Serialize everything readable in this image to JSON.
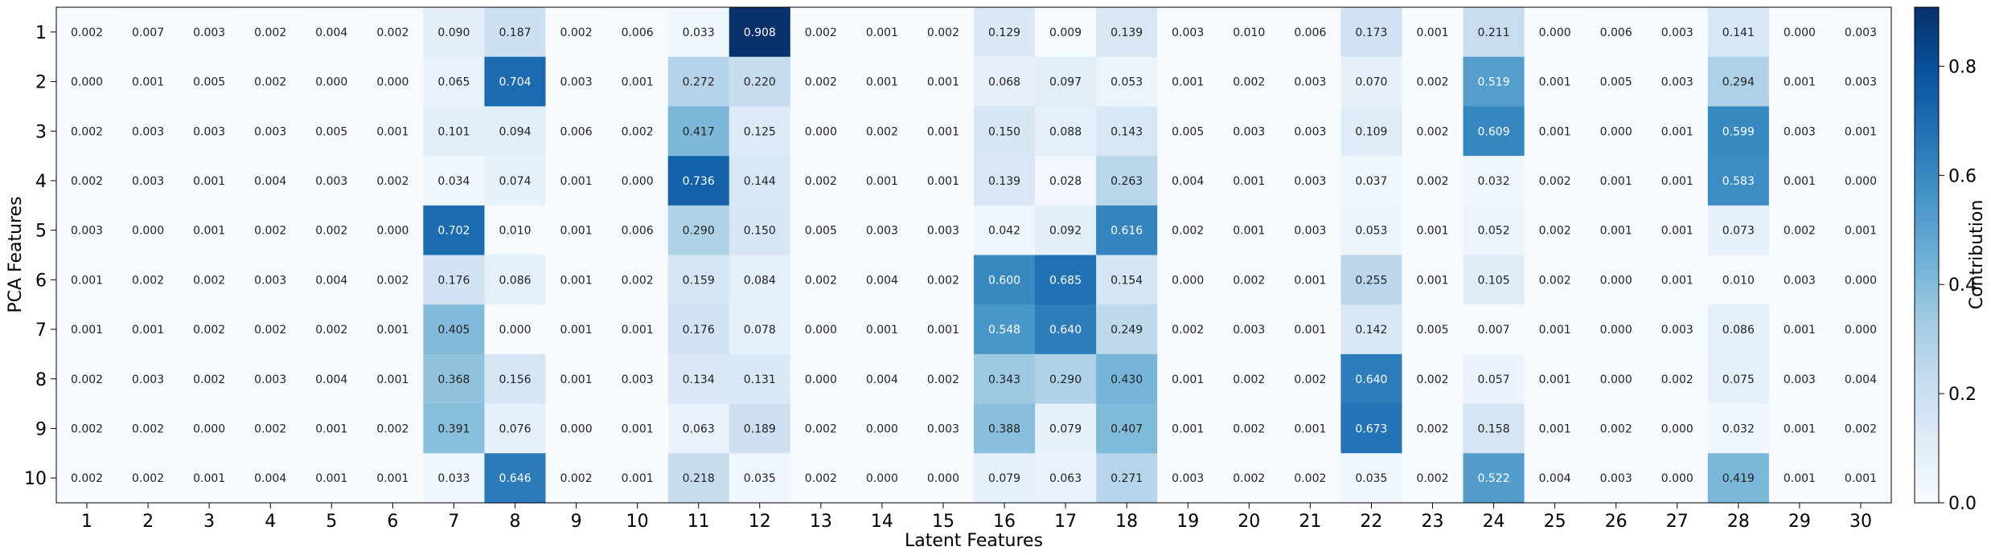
{
  "chart_data": {
    "type": "heatmap",
    "xlabel": "Latent Features",
    "ylabel": "PCA Features",
    "x_categories": [
      "1",
      "2",
      "3",
      "4",
      "5",
      "6",
      "7",
      "8",
      "9",
      "10",
      "11",
      "12",
      "13",
      "14",
      "15",
      "16",
      "17",
      "18",
      "19",
      "20",
      "21",
      "22",
      "23",
      "24",
      "25",
      "26",
      "27",
      "28",
      "29",
      "30"
    ],
    "y_categories": [
      "1",
      "2",
      "3",
      "4",
      "5",
      "6",
      "7",
      "8",
      "9",
      "10"
    ],
    "values": [
      [
        0.002,
        0.007,
        0.003,
        0.002,
        0.004,
        0.002,
        0.09,
        0.187,
        0.002,
        0.006,
        0.033,
        0.908,
        0.002,
        0.001,
        0.002,
        0.129,
        0.009,
        0.139,
        0.003,
        0.01,
        0.006,
        0.173,
        0.001,
        0.211,
        0.0,
        0.006,
        0.003,
        0.141,
        0.0,
        0.003
      ],
      [
        0.0,
        0.001,
        0.005,
        0.002,
        0.0,
        0.0,
        0.065,
        0.704,
        0.003,
        0.001,
        0.272,
        0.22,
        0.002,
        0.001,
        0.001,
        0.068,
        0.097,
        0.053,
        0.001,
        0.002,
        0.003,
        0.07,
        0.002,
        0.519,
        0.001,
        0.005,
        0.003,
        0.294,
        0.001,
        0.003
      ],
      [
        0.002,
        0.003,
        0.003,
        0.003,
        0.005,
        0.001,
        0.101,
        0.094,
        0.006,
        0.002,
        0.417,
        0.125,
        0.0,
        0.002,
        0.001,
        0.15,
        0.088,
        0.143,
        0.005,
        0.003,
        0.003,
        0.109,
        0.002,
        0.609,
        0.001,
        0.0,
        0.001,
        0.599,
        0.003,
        0.001
      ],
      [
        0.002,
        0.003,
        0.001,
        0.004,
        0.003,
        0.002,
        0.034,
        0.074,
        0.001,
        0.0,
        0.736,
        0.144,
        0.002,
        0.001,
        0.001,
        0.139,
        0.028,
        0.263,
        0.004,
        0.001,
        0.003,
        0.037,
        0.002,
        0.032,
        0.002,
        0.001,
        0.001,
        0.583,
        0.001,
        0.0
      ],
      [
        0.003,
        0.0,
        0.001,
        0.002,
        0.002,
        0.0,
        0.702,
        0.01,
        0.001,
        0.006,
        0.29,
        0.15,
        0.005,
        0.003,
        0.003,
        0.042,
        0.092,
        0.616,
        0.002,
        0.001,
        0.003,
        0.053,
        0.001,
        0.052,
        0.002,
        0.001,
        0.001,
        0.073,
        0.002,
        0.001
      ],
      [
        0.001,
        0.002,
        0.002,
        0.003,
        0.004,
        0.002,
        0.176,
        0.086,
        0.001,
        0.002,
        0.159,
        0.084,
        0.002,
        0.004,
        0.002,
        0.6,
        0.685,
        0.154,
        0.0,
        0.002,
        0.001,
        0.255,
        0.001,
        0.105,
        0.002,
        0.0,
        0.001,
        0.01,
        0.003,
        0.0
      ],
      [
        0.001,
        0.001,
        0.002,
        0.002,
        0.002,
        0.001,
        0.405,
        0.0,
        0.001,
        0.001,
        0.176,
        0.078,
        0.0,
        0.001,
        0.001,
        0.548,
        0.64,
        0.249,
        0.002,
        0.003,
        0.001,
        0.142,
        0.005,
        0.007,
        0.001,
        0.0,
        0.003,
        0.086,
        0.001,
        0.0
      ],
      [
        0.002,
        0.003,
        0.002,
        0.003,
        0.004,
        0.001,
        0.368,
        0.156,
        0.001,
        0.003,
        0.134,
        0.131,
        0.0,
        0.004,
        0.002,
        0.343,
        0.29,
        0.43,
        0.001,
        0.002,
        0.002,
        0.64,
        0.002,
        0.057,
        0.001,
        0.0,
        0.002,
        0.075,
        0.003,
        0.004
      ],
      [
        0.002,
        0.002,
        0.0,
        0.002,
        0.001,
        0.002,
        0.391,
        0.076,
        0.0,
        0.001,
        0.063,
        0.189,
        0.002,
        0.0,
        0.003,
        0.388,
        0.079,
        0.407,
        0.001,
        0.002,
        0.001,
        0.673,
        0.002,
        0.158,
        0.001,
        0.002,
        0.0,
        0.032,
        0.001,
        0.002
      ],
      [
        0.002,
        0.002,
        0.001,
        0.004,
        0.001,
        0.001,
        0.033,
        0.646,
        0.002,
        0.001,
        0.218,
        0.035,
        0.002,
        0.0,
        0.0,
        0.079,
        0.063,
        0.271,
        0.003,
        0.002,
        0.002,
        0.035,
        0.002,
        0.522,
        0.004,
        0.003,
        0.0,
        0.419,
        0.001,
        0.001
      ]
    ],
    "colormap": "Blues",
    "vmin": 0.0,
    "vmax": 0.908,
    "colorbar": {
      "label": "Contribution",
      "ticks": [
        0.0,
        0.2,
        0.4,
        0.6,
        0.8
      ],
      "tick_labels": [
        "0.0",
        "0.2",
        "0.4",
        "0.6",
        "0.8"
      ]
    },
    "annotations": "cell values shown with 3 decimals",
    "grid": false
  }
}
